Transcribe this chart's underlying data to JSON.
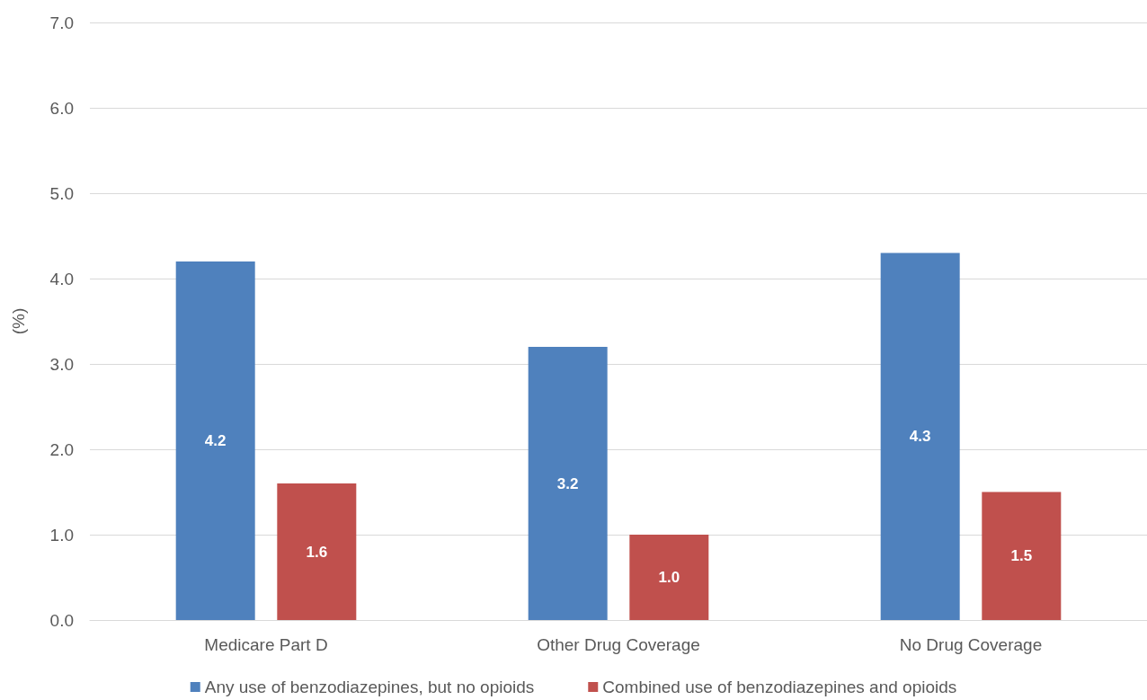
{
  "chart_data": {
    "type": "bar",
    "ylabel": "(%)",
    "categories": [
      "Medicare Part D",
      "Other Drug Coverage",
      "No Drug Coverage"
    ],
    "series": [
      {
        "name": "Any use of benzodiazepines, but no opioids",
        "color": "#4f81bd",
        "values": [
          4.2,
          3.2,
          4.3
        ],
        "value_labels": [
          "4.2",
          "3.2",
          "4.3"
        ]
      },
      {
        "name": "Combined use of benzodiazepines and opioids",
        "color": "#c0504d",
        "values": [
          1.6,
          1.0,
          1.5
        ],
        "value_labels": [
          "1.6",
          "1.0",
          "1.5"
        ]
      }
    ],
    "ylim": [
      0,
      7
    ],
    "yticks": [
      {
        "value": 0,
        "label": "0.0"
      },
      {
        "value": 1,
        "label": "1.0"
      },
      {
        "value": 2,
        "label": "2.0"
      },
      {
        "value": 3,
        "label": "3.0"
      },
      {
        "value": 4,
        "label": "4.0"
      },
      {
        "value": 5,
        "label": "5.0"
      },
      {
        "value": 6,
        "label": "6.0"
      },
      {
        "value": 7,
        "label": "7.0"
      }
    ],
    "grid": true,
    "legend": "bottom"
  }
}
